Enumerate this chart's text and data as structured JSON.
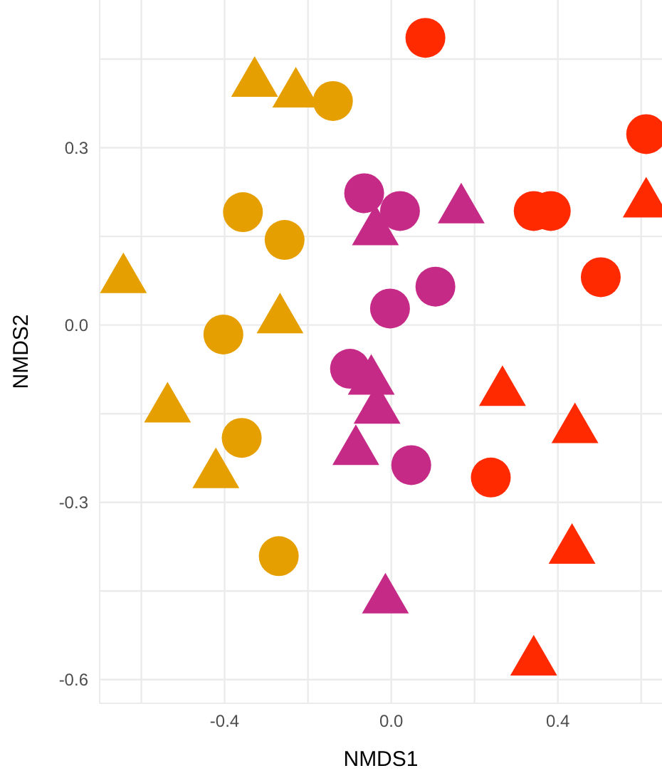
{
  "chart_data": {
    "type": "scatter",
    "xlabel": "NMDS1",
    "ylabel": "NMDS2",
    "xlim": [
      -0.7,
      0.65
    ],
    "ylim": [
      -0.64,
      0.55
    ],
    "xticks": [
      {
        "value": -0.6,
        "label": null
      },
      -0.4,
      {
        "value": -0.2,
        "label": null
      },
      {
        "value": 0,
        "label": "0.0"
      },
      {
        "value": 0.2,
        "label": null
      },
      0.4,
      {
        "value": 0.6,
        "label": null
      }
    ],
    "yticks": [
      -0.6,
      {
        "value": -0.45,
        "label": null
      },
      -0.3,
      {
        "value": -0.15,
        "label": null
      },
      {
        "value": 0,
        "label": "0.0"
      },
      {
        "value": 0.15,
        "label": null
      },
      0.3,
      {
        "value": 0.45,
        "label": null
      }
    ],
    "grid": true,
    "series": [
      {
        "color": "#e69f00",
        "marker": "circle",
        "x": [
          -0.14,
          -0.356,
          -0.256,
          -0.403,
          -0.359,
          -0.27
        ],
        "values": [
          0.379,
          0.191,
          0.144,
          -0.016,
          -0.191,
          -0.391
        ]
      },
      {
        "color": "#e69f00",
        "marker": "triangle",
        "x": [
          -0.328,
          -0.229,
          -0.643,
          -0.267,
          -0.537,
          -0.421
        ],
        "values": [
          0.409,
          0.391,
          0.077,
          0.009,
          -0.142,
          -0.253
        ]
      },
      {
        "color": "#c52a87",
        "marker": "circle",
        "x": [
          -0.065,
          0.021,
          0.106,
          -0.003,
          -0.099,
          0.048
        ],
        "values": [
          0.223,
          0.193,
          0.065,
          0.028,
          -0.074,
          -0.237
        ]
      },
      {
        "color": "#c52a87",
        "marker": "triangle",
        "x": [
          -0.038,
          0.168,
          -0.048,
          -0.034,
          -0.085,
          -0.014
        ],
        "values": [
          0.158,
          0.195,
          -0.095,
          -0.144,
          -0.214,
          -0.465
        ]
      },
      {
        "color": "#ff2a00",
        "marker": "circle",
        "x": [
          0.082,
          0.342,
          0.383,
          0.612,
          0.503,
          0.239
        ],
        "values": [
          0.486,
          0.193,
          0.193,
          0.323,
          0.081,
          -0.258
        ]
      },
      {
        "color": "#ff2a00",
        "marker": "triangle",
        "x": [
          0.612,
          0.267,
          0.441,
          0.434,
          0.342
        ],
        "values": [
          0.205,
          -0.114,
          -0.177,
          -0.381,
          -0.57
        ]
      }
    ]
  }
}
